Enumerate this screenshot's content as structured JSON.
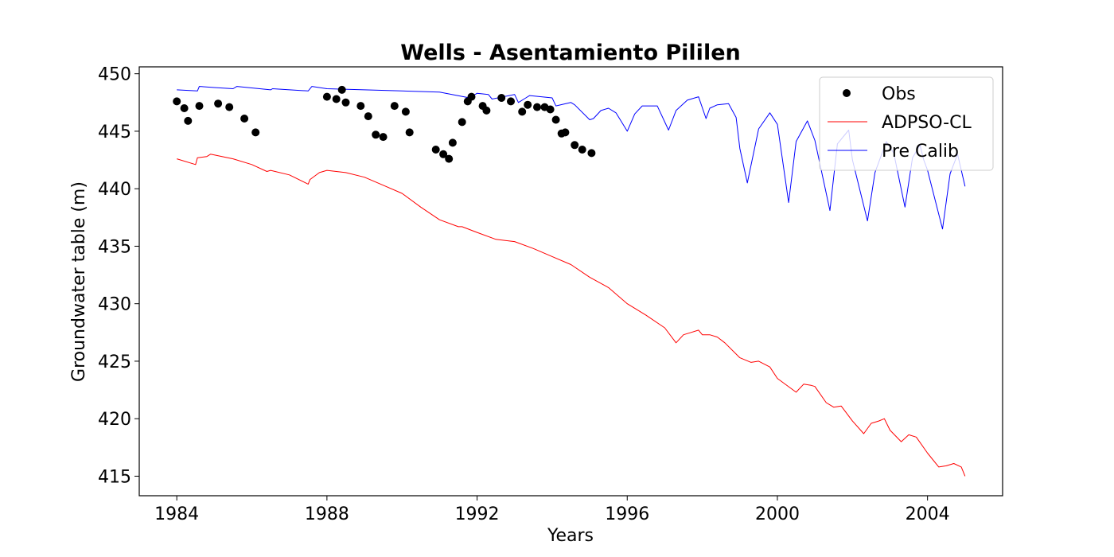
{
  "chart_data": {
    "type": "line",
    "title": "Wells - Asentamiento Pililen",
    "xlabel": "Years",
    "ylabel": "Groundwater table (m)",
    "xlim": [
      1983.0,
      2006.0
    ],
    "ylim": [
      413.3,
      450.6
    ],
    "xticks": [
      1984,
      1988,
      1992,
      1996,
      2000,
      2004
    ],
    "yticks": [
      415,
      420,
      425,
      430,
      435,
      440,
      445,
      450
    ],
    "grid": false,
    "legend_position": "top-right",
    "series": [
      {
        "name": "Obs",
        "kind": "scatter",
        "color": "#000000",
        "points": [
          [
            1984.0,
            447.6
          ],
          [
            1984.2,
            447.0
          ],
          [
            1984.3,
            445.9
          ],
          [
            1984.6,
            447.2
          ],
          [
            1985.1,
            447.4
          ],
          [
            1985.4,
            447.1
          ],
          [
            1985.8,
            446.1
          ],
          [
            1986.1,
            444.9
          ],
          [
            1988.0,
            448.0
          ],
          [
            1988.25,
            447.8
          ],
          [
            1988.4,
            448.6
          ],
          [
            1988.5,
            447.5
          ],
          [
            1988.9,
            447.2
          ],
          [
            1989.1,
            446.3
          ],
          [
            1989.3,
            444.7
          ],
          [
            1989.5,
            444.5
          ],
          [
            1989.8,
            447.2
          ],
          [
            1990.1,
            446.7
          ],
          [
            1990.2,
            444.9
          ],
          [
            1990.9,
            443.4
          ],
          [
            1991.1,
            443.0
          ],
          [
            1991.25,
            442.6
          ],
          [
            1991.35,
            444.0
          ],
          [
            1991.6,
            445.8
          ],
          [
            1991.75,
            447.6
          ],
          [
            1991.85,
            448.0
          ],
          [
            1992.15,
            447.2
          ],
          [
            1992.25,
            446.8
          ],
          [
            1992.65,
            447.9
          ],
          [
            1992.9,
            447.6
          ],
          [
            1993.2,
            446.7
          ],
          [
            1993.35,
            447.3
          ],
          [
            1993.6,
            447.1
          ],
          [
            1993.8,
            447.1
          ],
          [
            1993.95,
            446.9
          ],
          [
            1994.1,
            446.0
          ],
          [
            1994.25,
            444.8
          ],
          [
            1994.35,
            444.9
          ],
          [
            1994.6,
            443.8
          ],
          [
            1994.8,
            443.4
          ],
          [
            1995.05,
            443.1
          ]
        ]
      },
      {
        "name": "ADPSO-CL",
        "kind": "line",
        "color": "#ff0000",
        "x": [
          1984.0,
          1984.5,
          1984.55,
          1984.8,
          1984.9,
          1985.5,
          1986.0,
          1986.4,
          1986.5,
          1987.0,
          1987.5,
          1987.55,
          1987.8,
          1988.0,
          1988.5,
          1989.0,
          1989.5,
          1990.0,
          1990.5,
          1991.0,
          1991.5,
          1991.6,
          1992.0,
          1992.5,
          1993.0,
          1993.5,
          1994.0,
          1994.5,
          1995.0,
          1995.5,
          1996.0,
          1996.5,
          1997.0,
          1997.3,
          1997.5,
          1997.7,
          1997.9,
          1998.0,
          1998.2,
          1998.4,
          1998.6,
          1999.0,
          1999.3,
          1999.5,
          1999.8,
          2000.0,
          2000.5,
          2000.7,
          2000.9,
          2001.0,
          2001.3,
          2001.5,
          2001.7,
          2002.0,
          2002.3,
          2002.5,
          2002.7,
          2002.85,
          2003.0,
          2003.3,
          2003.5,
          2003.7,
          2004.0,
          2004.3,
          2004.5,
          2004.7,
          2004.9,
          2005.0
        ],
        "y": [
          442.6,
          442.1,
          442.7,
          442.8,
          443.0,
          442.6,
          442.1,
          441.5,
          441.6,
          441.2,
          440.4,
          440.8,
          441.4,
          441.6,
          441.4,
          441.0,
          440.3,
          439.6,
          438.4,
          437.3,
          436.7,
          436.7,
          436.2,
          435.6,
          435.4,
          434.8,
          434.1,
          433.4,
          432.3,
          431.4,
          430.0,
          429.0,
          427.9,
          426.6,
          427.3,
          427.5,
          427.7,
          427.3,
          427.3,
          427.1,
          426.6,
          425.3,
          424.9,
          425.0,
          424.5,
          423.5,
          422.3,
          423.0,
          422.9,
          422.8,
          421.4,
          421.0,
          421.1,
          419.8,
          418.7,
          419.6,
          419.8,
          420.0,
          419.0,
          418.0,
          418.6,
          418.4,
          417.0,
          415.8,
          415.9,
          416.1,
          415.8,
          415.0
        ]
      },
      {
        "name": "Pre Calib",
        "kind": "line",
        "color": "#0000ff",
        "x": [
          1984.0,
          1984.55,
          1984.6,
          1985.0,
          1985.5,
          1985.6,
          1986.5,
          1986.55,
          1987.5,
          1987.6,
          1988.0,
          1989.0,
          1990.0,
          1991.0,
          1991.8,
          1992.0,
          1992.3,
          1992.4,
          1993.0,
          1993.1,
          1993.3,
          1993.4,
          1994.0,
          1994.1,
          1994.5,
          1994.6,
          1995.0,
          1995.1,
          1995.3,
          1995.5,
          1995.7,
          1996.0,
          1996.2,
          1996.4,
          1996.8,
          1997.1,
          1997.3,
          1997.6,
          1997.9,
          1998.1,
          1998.2,
          1998.4,
          1998.7,
          1998.9,
          1999.0,
          1999.2,
          1999.5,
          1999.8,
          2000.0,
          2000.3,
          2000.5,
          2000.8,
          2001.0,
          2001.4,
          2001.6,
          2001.9,
          2002.0,
          2002.4,
          2002.6,
          2002.9,
          2003.1,
          2003.4,
          2003.6,
          2003.8,
          2003.9,
          2004.0,
          2004.4,
          2004.6,
          2004.8,
          2005.0
        ],
        "y": [
          448.6,
          448.5,
          448.9,
          448.8,
          448.7,
          448.9,
          448.6,
          448.7,
          448.5,
          448.9,
          448.7,
          448.6,
          448.5,
          448.4,
          447.9,
          448.3,
          448.2,
          447.8,
          448.2,
          447.5,
          447.9,
          448.1,
          447.9,
          447.2,
          447.5,
          447.3,
          446.0,
          446.1,
          446.8,
          447.0,
          446.6,
          445.0,
          446.5,
          447.2,
          447.2,
          445.1,
          446.8,
          447.7,
          448.0,
          446.1,
          447.0,
          447.3,
          447.4,
          446.2,
          443.5,
          440.5,
          445.2,
          446.6,
          445.6,
          438.8,
          444.1,
          445.9,
          444.2,
          438.1,
          443.9,
          445.1,
          442.5,
          437.2,
          441.4,
          444.1,
          443.1,
          438.4,
          442.7,
          443.8,
          442.5,
          441.6,
          436.5,
          441.3,
          443.0,
          440.2
        ]
      }
    ]
  }
}
